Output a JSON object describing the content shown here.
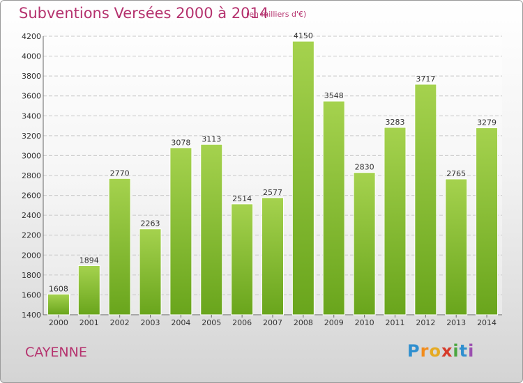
{
  "header": {
    "title": "Subventions Versées 2000 à 2014",
    "unit": "(en milliers d'€)"
  },
  "footer": {
    "place": "CAYENNE",
    "logo": [
      "P",
      "r",
      "o",
      "x",
      "i",
      "t",
      "i"
    ]
  },
  "colors": {
    "title": "#b5326e",
    "bar_light": "#a5d24e",
    "bar_dark": "#69a51c",
    "logo": [
      "#2f8fcf",
      "#f28c1c",
      "#e6aa22",
      "#d63a2a",
      "#4aa640",
      "#2f8fcf",
      "#9b4fb0"
    ]
  },
  "chart_data": {
    "type": "bar",
    "categories": [
      "2000",
      "2001",
      "2002",
      "2003",
      "2004",
      "2005",
      "2006",
      "2007",
      "2008",
      "2009",
      "2010",
      "2011",
      "2012",
      "2013",
      "2014"
    ],
    "values": [
      1608,
      1894,
      2770,
      2263,
      3078,
      3113,
      2514,
      2577,
      4150,
      3548,
      2830,
      3283,
      3717,
      2765,
      3279
    ],
    "ylim": [
      1400,
      4200
    ],
    "yticks": [
      "1400",
      "1600",
      "1800",
      "2000",
      "2200",
      "2400",
      "2600",
      "2800",
      "3000",
      "3200",
      "3400",
      "3600",
      "3800",
      "4000",
      "4200"
    ],
    "grid": true,
    "data_labels": true
  }
}
